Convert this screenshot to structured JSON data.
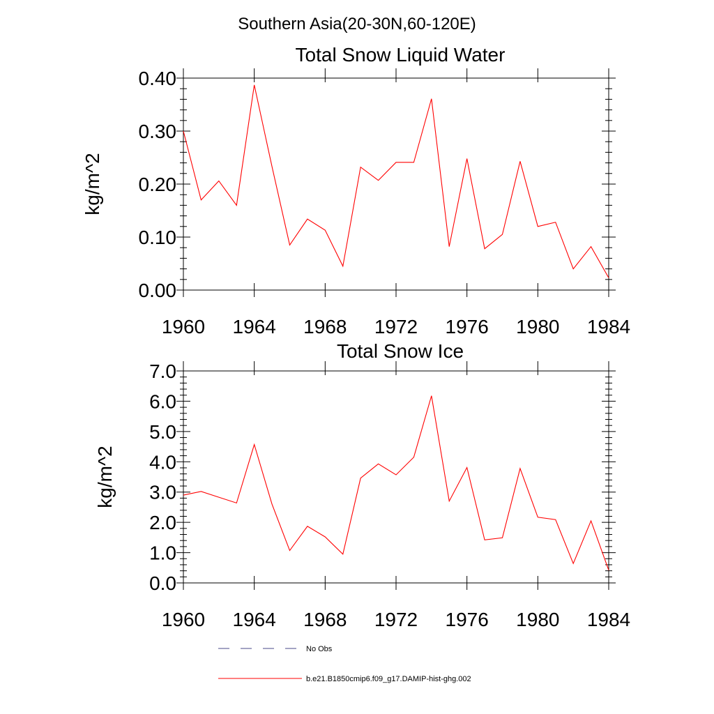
{
  "suptitle": "Southern Asia(20-30N,60-120E)",
  "chart_data": [
    {
      "type": "line",
      "title": "Total Snow Liquid Water",
      "xlabel": "",
      "ylabel": "kg/m^2",
      "xlim": [
        1960,
        1984
      ],
      "ylim": [
        0,
        0.4
      ],
      "x_ticks": [
        "1960",
        "1964",
        "1968",
        "1972",
        "1976",
        "1980",
        "1984"
      ],
      "y_ticks": [
        "0.00",
        "0.10",
        "0.20",
        "0.30",
        "0.40"
      ],
      "x": [
        1960,
        1961,
        1962,
        1963,
        1964,
        1965,
        1966,
        1967,
        1968,
        1969,
        1970,
        1971,
        1972,
        1973,
        1974,
        1975,
        1976,
        1977,
        1978,
        1979,
        1980,
        1981,
        1982,
        1983,
        1984
      ],
      "series": [
        {
          "name": "b.e21.B1850cmip6.f09_g17.DAMIP-hist-ghg.002",
          "color": "#ff0000",
          "values": [
            0.3,
            0.17,
            0.206,
            0.16,
            0.387,
            0.233,
            0.085,
            0.134,
            0.113,
            0.045,
            0.232,
            0.207,
            0.241,
            0.241,
            0.361,
            0.082,
            0.248,
            0.078,
            0.105,
            0.243,
            0.12,
            0.128,
            0.04,
            0.082,
            0.023
          ]
        }
      ]
    },
    {
      "type": "line",
      "title": "Total Snow Ice",
      "xlabel": "",
      "ylabel": "kg/m^2",
      "xlim": [
        1960,
        1984
      ],
      "ylim": [
        0,
        7
      ],
      "x_ticks": [
        "1960",
        "1964",
        "1968",
        "1972",
        "1976",
        "1980",
        "1984"
      ],
      "y_ticks": [
        "0.0",
        "1.0",
        "2.0",
        "3.0",
        "4.0",
        "5.0",
        "6.0",
        "7.0"
      ],
      "x": [
        1960,
        1961,
        1962,
        1963,
        1964,
        1965,
        1966,
        1967,
        1968,
        1969,
        1970,
        1971,
        1972,
        1973,
        1974,
        1975,
        1976,
        1977,
        1978,
        1979,
        1980,
        1981,
        1982,
        1983,
        1984
      ],
      "series": [
        {
          "name": "b.e21.B1850cmip6.f09_g17.DAMIP-hist-ghg.002",
          "color": "#ff0000",
          "values": [
            2.9,
            3.02,
            2.83,
            2.64,
            4.57,
            2.6,
            1.07,
            1.87,
            1.52,
            0.95,
            3.46,
            3.93,
            3.57,
            4.15,
            6.18,
            2.7,
            3.81,
            1.42,
            1.49,
            3.78,
            2.17,
            2.09,
            0.64,
            2.05,
            0.42
          ]
        }
      ]
    }
  ],
  "legend": [
    {
      "label": "No Obs",
      "style": "dashed",
      "color": "#4a4a8a"
    },
    {
      "label": "b.e21.B1850cmip6.f09_g17.DAMIP-hist-ghg.002",
      "style": "solid",
      "color": "#ff0000"
    }
  ]
}
